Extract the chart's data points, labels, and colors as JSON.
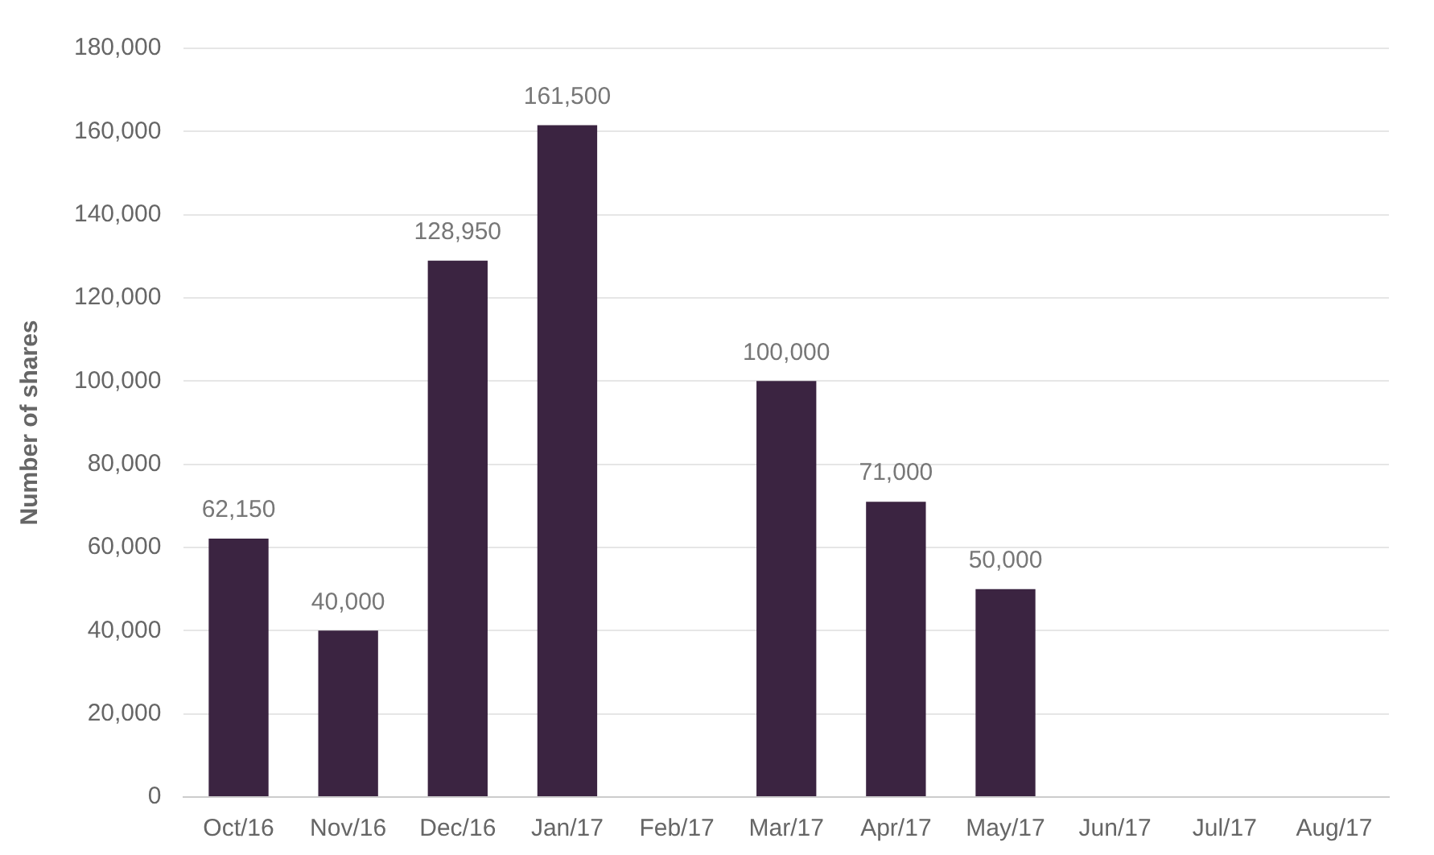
{
  "chart_data": {
    "type": "bar",
    "ylabel": "Number of shares",
    "categories": [
      "Oct/16",
      "Nov/16",
      "Dec/16",
      "Jan/17",
      "Feb/17",
      "Mar/17",
      "Apr/17",
      "May/17",
      "Jun/17",
      "Jul/17",
      "Aug/17"
    ],
    "values": [
      62150,
      40000,
      128950,
      161500,
      null,
      100000,
      71000,
      50000,
      null,
      null,
      null
    ],
    "value_labels": [
      "62,150",
      "40,000",
      "128,950",
      "161,500",
      null,
      "100,000",
      "71,000",
      "50,000",
      null,
      null,
      null
    ],
    "color": "#3b2441",
    "ylim": [
      0,
      180000
    ],
    "yticks": [
      0,
      {
        "value": 20000,
        "label": "20,000"
      },
      {
        "value": 40000,
        "label": "40,000"
      },
      {
        "value": 60000,
        "label": "60,000"
      },
      {
        "value": 80000,
        "label": "80,000"
      },
      {
        "value": 100000,
        "label": "100,000"
      },
      {
        "value": 120000,
        "label": "120,000"
      },
      {
        "value": 140000,
        "label": "140,000"
      },
      {
        "value": 160000,
        "label": "160,000"
      },
      {
        "value": 180000,
        "label": "180,000"
      }
    ],
    "grid": "y",
    "legend": false
  }
}
